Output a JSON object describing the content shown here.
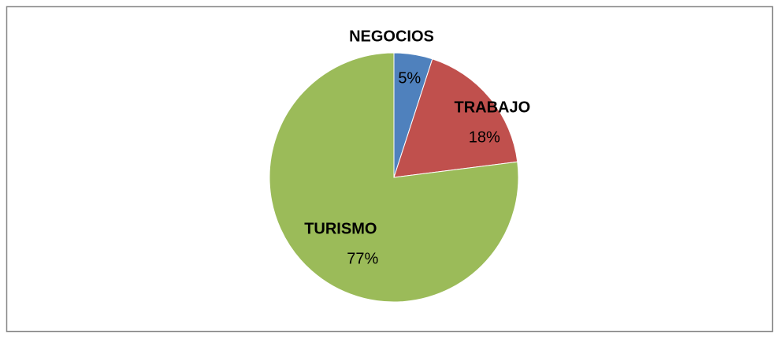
{
  "chart_data": {
    "type": "pie",
    "categories": [
      "NEGOCIOS",
      "TRABAJO",
      "TURISMO"
    ],
    "values": [
      5,
      18,
      77
    ],
    "value_labels": [
      "5%",
      "18%",
      "77%"
    ],
    "colors": [
      "#4f81bd",
      "#c0504d",
      "#9bbb59"
    ]
  }
}
